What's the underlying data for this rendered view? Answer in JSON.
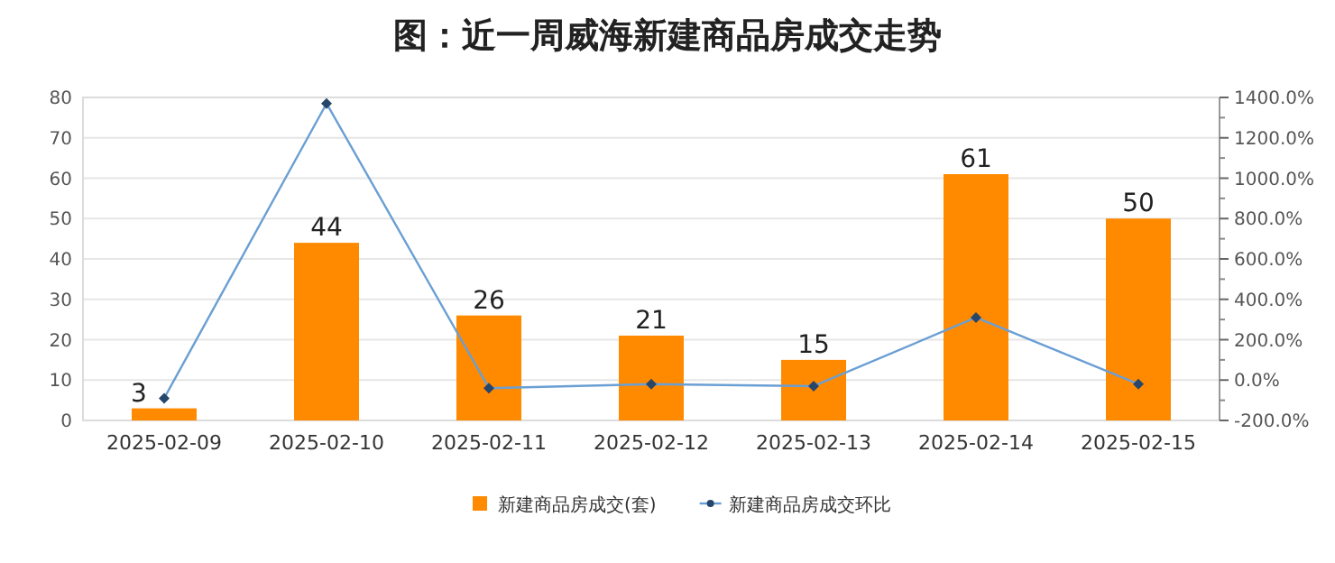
{
  "chart_data": {
    "type": "bar",
    "title": "图：近一周威海新建商品房成交走势",
    "categories": [
      "2025-02-09",
      "2025-02-10",
      "2025-02-11",
      "2025-02-12",
      "2025-02-13",
      "2025-02-14",
      "2025-02-15"
    ],
    "series": [
      {
        "name": "新建商品房成交(套)",
        "color": "#ff8a00",
        "values": [
          3,
          44,
          26,
          21,
          15,
          61,
          50
        ],
        "value_labels": [
          "3",
          "44",
          "26",
          "21",
          "15",
          "61",
          "50"
        ]
      },
      {
        "name": "新建商品房成交环比",
        "type": "line",
        "axis": "y2",
        "color": "#6a9fd4",
        "marker": "diamond",
        "values": [
          -90,
          1370,
          -40,
          -20,
          -30,
          310,
          -20
        ]
      }
    ],
    "ylim": [
      0,
      80
    ],
    "yticks": [
      0,
      10,
      20,
      30,
      40,
      50,
      60,
      70,
      80
    ],
    "y2lim": [
      -200,
      1400
    ],
    "y2ticks": [
      {
        "value": -200,
        "label": "-200.0%"
      },
      {
        "value": 0,
        "label": "0.0%"
      },
      {
        "value": 200,
        "label": "200.0%"
      },
      {
        "value": 400,
        "label": "400.0%"
      },
      {
        "value": 600,
        "label": "600.0%"
      },
      {
        "value": 800,
        "label": "800.0%"
      },
      {
        "value": 1000,
        "label": "1000.0%"
      },
      {
        "value": 1200,
        "label": "1200.0%"
      },
      {
        "value": 1400,
        "label": "1400.0%"
      }
    ],
    "grid": "y",
    "legend": "bottom"
  }
}
